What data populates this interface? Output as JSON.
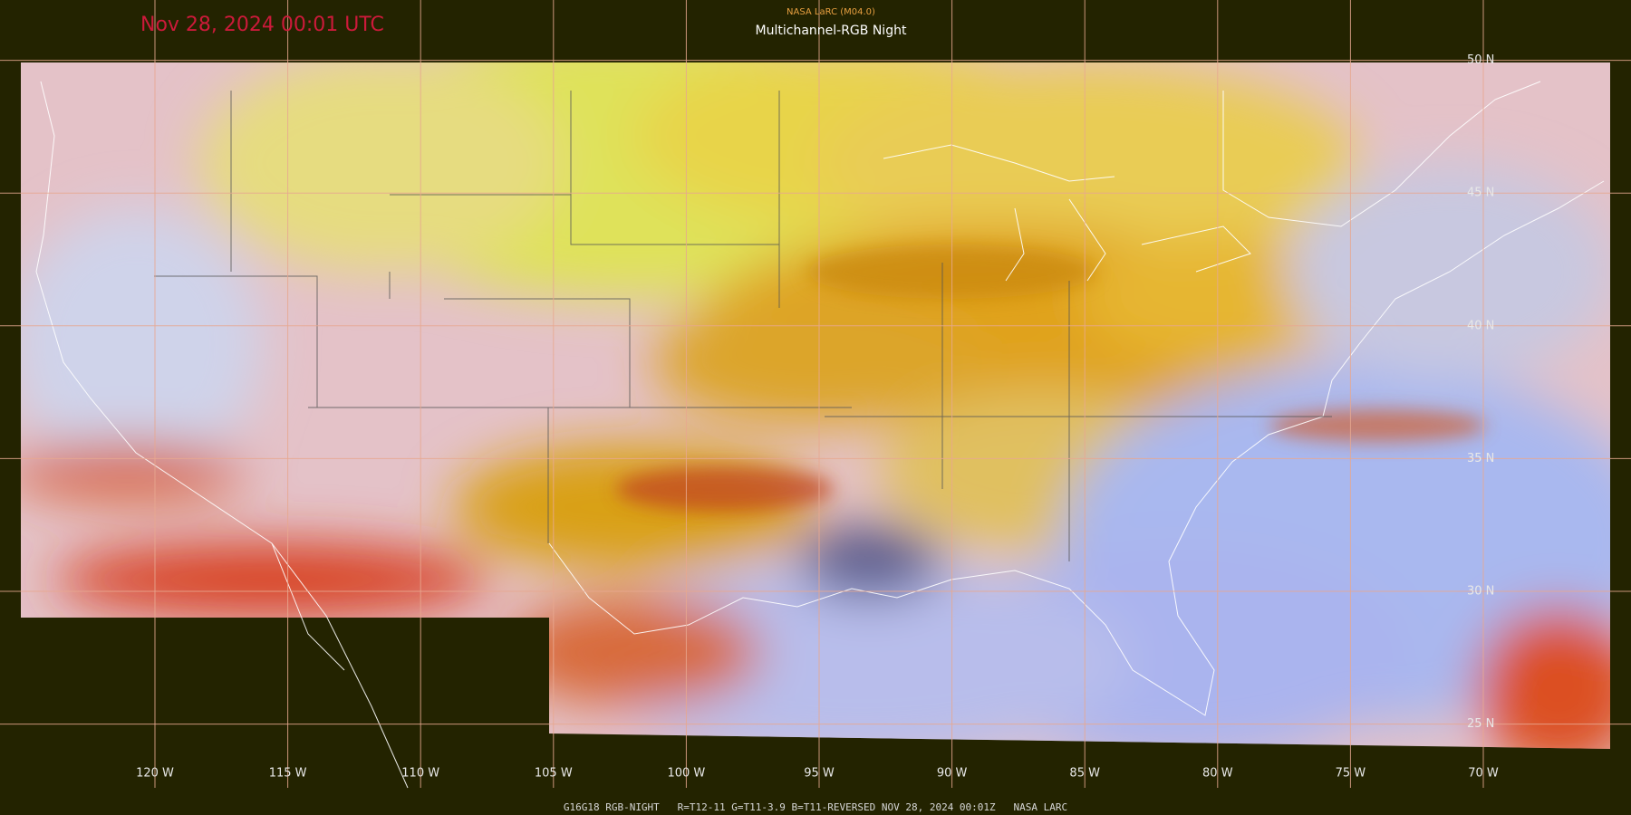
{
  "header": {
    "timestamp": "Nov 28, 2024 00:01 UTC",
    "source": "NASA LaRC (M04.0)",
    "product": "Multichannel-RGB Night"
  },
  "latitude_labels": [
    "50 N",
    "45 N",
    "40 N",
    "35 N",
    "30 N",
    "25 N"
  ],
  "longitude_labels": [
    "120 W",
    "115 W",
    "110 W",
    "105 W",
    "100 W",
    "95 W",
    "90 W",
    "85 W",
    "80 W",
    "75 W",
    "70 W"
  ],
  "footer": {
    "caption": "G16G18 RGB-NIGHT   R=T12-11 G=T11-3.9 B=T11-REVERSED NOV 28, 2024 00:01Z   NASA LARC"
  }
}
